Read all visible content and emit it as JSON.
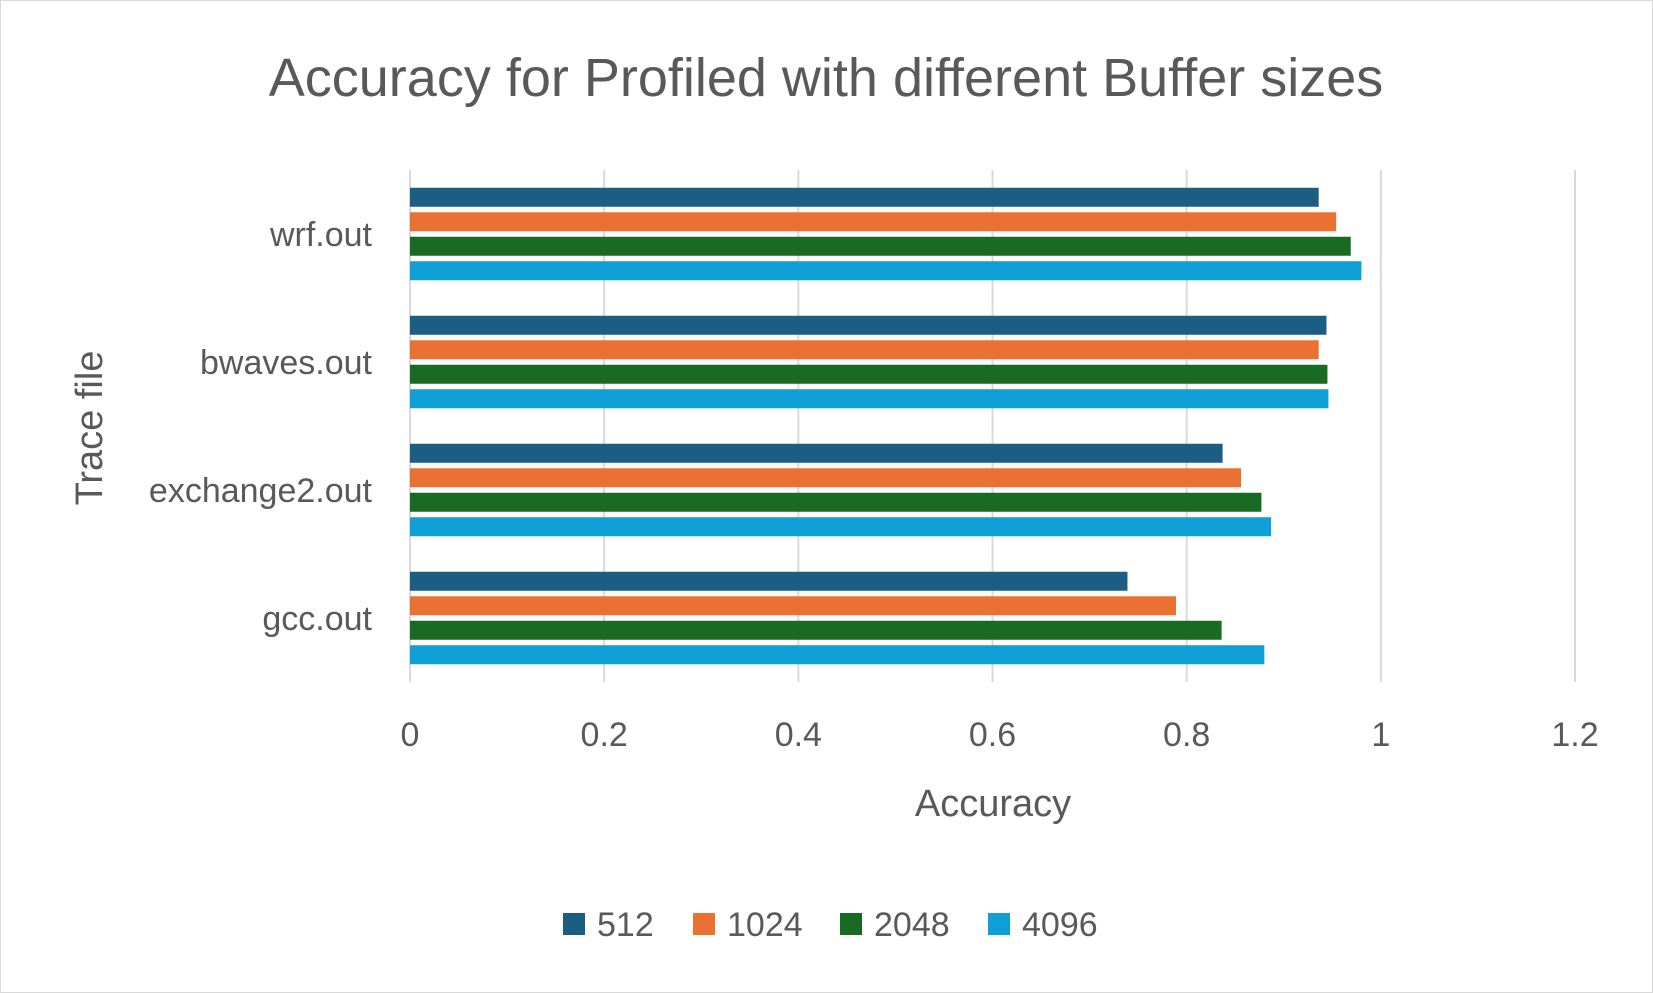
{
  "chart_data": {
    "type": "bar",
    "orientation": "horizontal",
    "title": "Accuracy for Profiled with different Buffer sizes",
    "xlabel": "Accuracy",
    "ylabel": "Trace file",
    "categories": [
      "gcc.out",
      "exchange2.out",
      "bwaves.out",
      "wrf.out"
    ],
    "series": [
      {
        "name": "512",
        "color": "#1a5e83",
        "values": [
          0.739,
          0.837,
          0.944,
          0.936
        ]
      },
      {
        "name": "1024",
        "color": "#e97132",
        "values": [
          0.789,
          0.856,
          0.936,
          0.954
        ]
      },
      {
        "name": "2048",
        "color": "#196b24",
        "values": [
          0.836,
          0.877,
          0.945,
          0.969
        ]
      },
      {
        "name": "4096",
        "color": "#0f9ed5",
        "values": [
          0.88,
          0.887,
          0.946,
          0.98
        ]
      }
    ],
    "xlim": [
      0,
      1.2
    ],
    "xticks": [
      "0",
      "0.2",
      "0.4",
      "0.6",
      "0.8",
      "1",
      "1.2"
    ],
    "grid": true,
    "legend_position": "bottom"
  }
}
